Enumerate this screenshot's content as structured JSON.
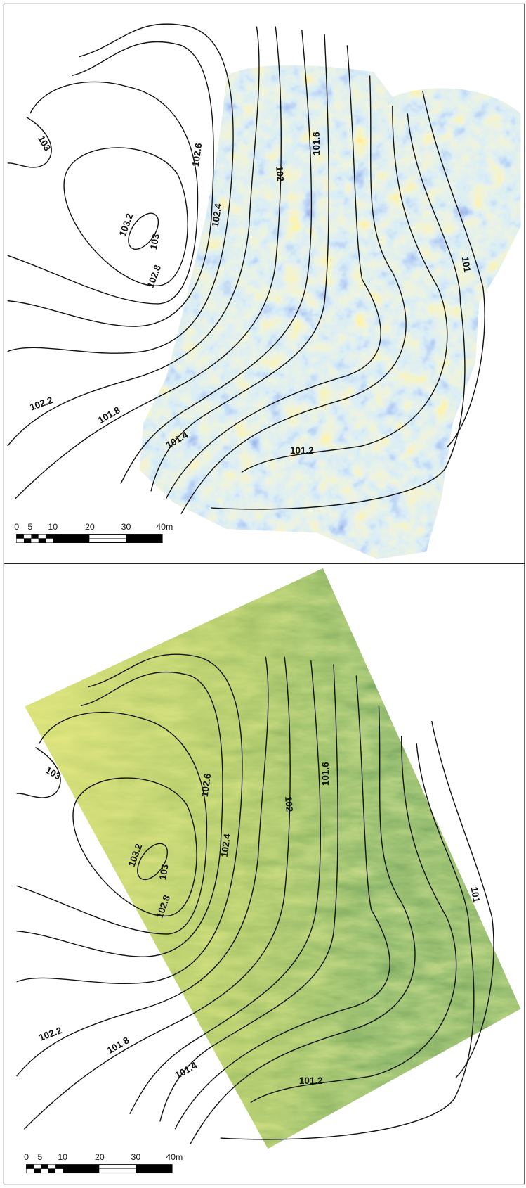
{
  "panels": [
    {
      "contour_labels": [
        "103",
        "103.2",
        "103",
        "102.8",
        "102.6",
        "102.4",
        "102",
        "101.6",
        "101",
        "102.2",
        "101.8",
        "101.4",
        "101.2"
      ],
      "scale_labels": [
        "0",
        "5",
        "10",
        "20",
        "30",
        "40m"
      ]
    },
    {
      "contour_labels": [
        "103",
        "103.2",
        "103",
        "102.8",
        "102.6",
        "102.4",
        "102",
        "101.6",
        "101",
        "102.2",
        "101.8",
        "101.4",
        "101.2"
      ],
      "scale_labels": [
        "0",
        "5",
        "10",
        "20",
        "30",
        "40m"
      ]
    }
  ]
}
